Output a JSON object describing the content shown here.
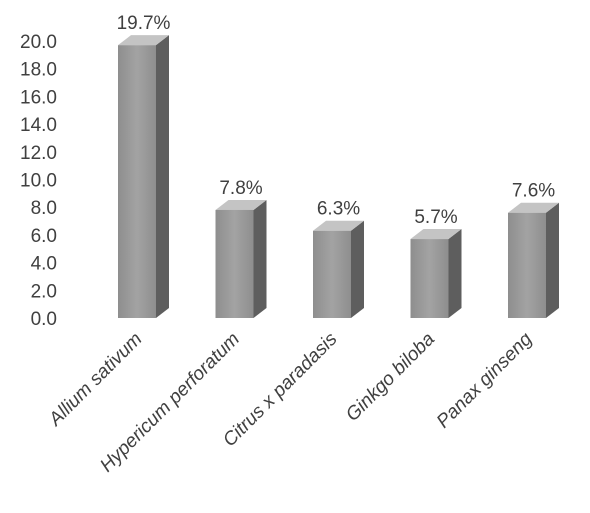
{
  "chart_data": {
    "type": "bar",
    "categories": [
      "Allium sativum",
      "Hypericum perforatum",
      "Citrus x paradasis",
      "Ginkgo biloba",
      "Panax ginseng"
    ],
    "values": [
      19.7,
      7.8,
      6.3,
      5.7,
      7.6
    ],
    "data_labels": [
      "19.7%",
      "7.8%",
      "6.3%",
      "5.7%",
      "7.6%"
    ],
    "y_ticks": [
      "0.0",
      "2.0",
      "4.0",
      "6.0",
      "8.0",
      "10.0",
      "12.0",
      "14.0",
      "16.0",
      "18.0",
      "20.0"
    ],
    "ylim": [
      0,
      20
    ],
    "title": "",
    "xlabel": "",
    "ylabel": "",
    "grid": false,
    "legend": false,
    "bar_style": "3d",
    "colors": {
      "front": "#9c9c9c",
      "side": "#5e5e5e",
      "top": "#c4c4c4",
      "text": "#404040"
    }
  }
}
